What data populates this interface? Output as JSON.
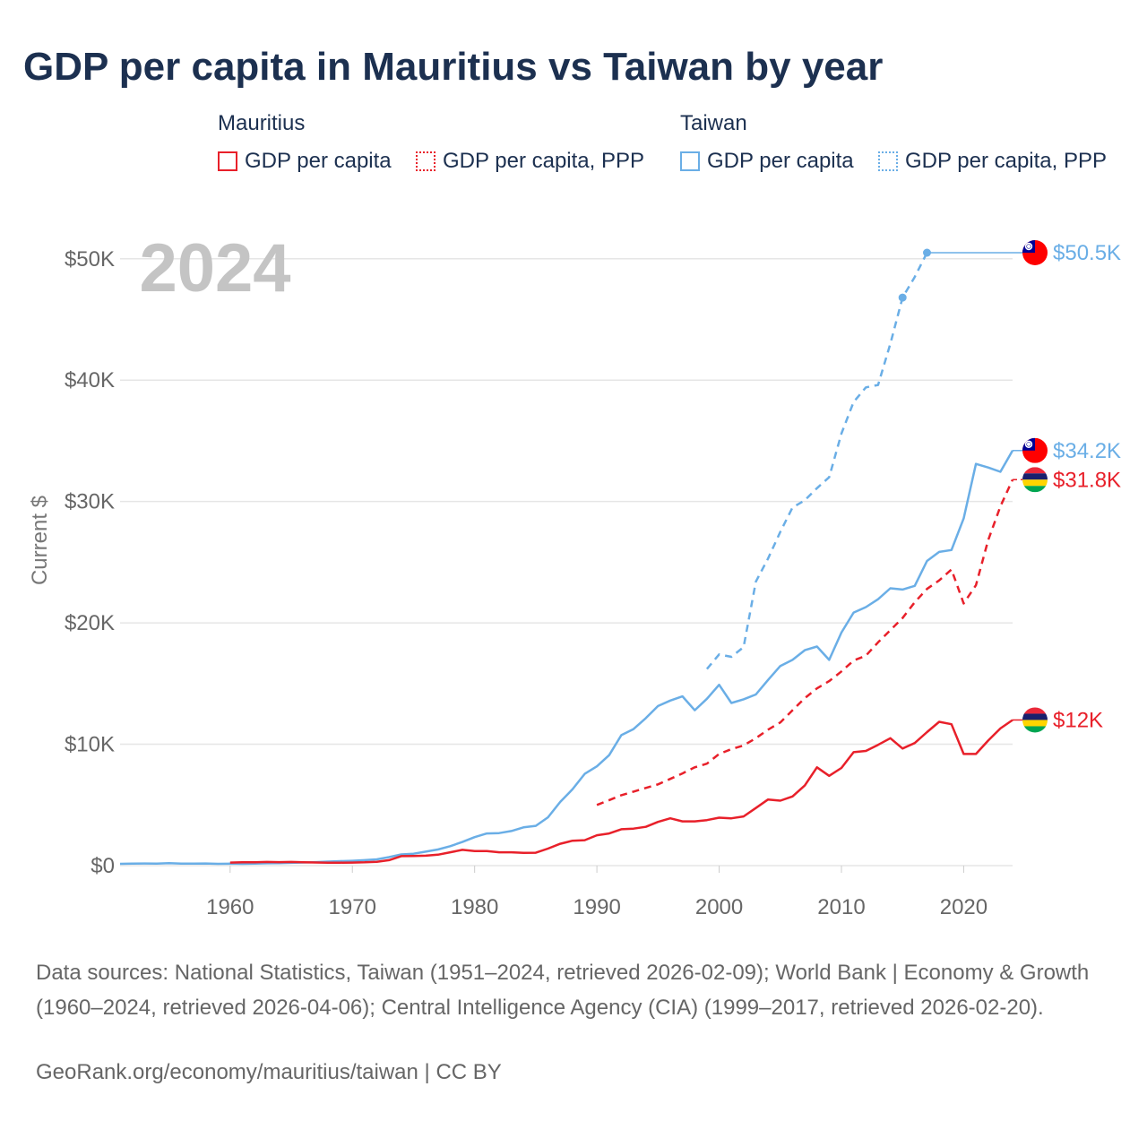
{
  "title": "GDP per capita in Mauritius vs Taiwan by year",
  "legend": {
    "groups": [
      {
        "country": "Mauritius",
        "color": "#e8202a",
        "items": [
          "GDP per capita",
          "GDP per capita, PPP"
        ]
      },
      {
        "country": "Taiwan",
        "color": "#6aaee6",
        "items": [
          "GDP per capita",
          "GDP per capita, PPP"
        ]
      }
    ]
  },
  "year_watermark": "2024",
  "footer": {
    "sources": "Data sources: National Statistics, Taiwan (1951–2024, retrieved 2026-02-09); World Bank | Economy & Growth (1960–2024, retrieved 2026-04-06); Central Intelligence Agency (CIA) (1999–2017, retrieved 2026-02-20).",
    "credit": "GeoRank.org/economy/mauritius/taiwan | CC BY"
  },
  "chart_data": {
    "type": "line",
    "ylabel": "Current $",
    "xlim": [
      1951,
      2024
    ],
    "ylim": [
      0,
      50500
    ],
    "x_ticks": [
      1960,
      1970,
      1980,
      1990,
      2000,
      2010,
      2020
    ],
    "y_ticks": [
      {
        "value": 0,
        "label": "$0"
      },
      {
        "value": 10000,
        "label": "$10K"
      },
      {
        "value": 20000,
        "label": "$20K"
      },
      {
        "value": 30000,
        "label": "$30K"
      },
      {
        "value": 40000,
        "label": "$40K"
      },
      {
        "value": 50000,
        "label": "$50K"
      }
    ],
    "series": [
      {
        "name": "Taiwan GDP per capita",
        "country": "Taiwan",
        "color": "#6aaee6",
        "dashed": false,
        "end_label": "$34.2K",
        "x": [
          1951,
          1952,
          1953,
          1954,
          1955,
          1956,
          1957,
          1958,
          1959,
          1960,
          1961,
          1962,
          1963,
          1964,
          1965,
          1966,
          1967,
          1968,
          1969,
          1970,
          1971,
          1972,
          1973,
          1974,
          1975,
          1976,
          1977,
          1978,
          1979,
          1980,
          1981,
          1982,
          1983,
          1984,
          1985,
          1986,
          1987,
          1988,
          1989,
          1990,
          1991,
          1992,
          1993,
          1994,
          1995,
          1996,
          1997,
          1998,
          1999,
          2000,
          2001,
          2002,
          2003,
          2004,
          2005,
          2006,
          2007,
          2008,
          2009,
          2010,
          2011,
          2012,
          2013,
          2014,
          2015,
          2016,
          2017,
          2018,
          2019,
          2020,
          2021,
          2022,
          2023,
          2024
        ],
        "y": [
          150,
          170,
          180,
          170,
          200,
          160,
          170,
          180,
          150,
          160,
          150,
          170,
          190,
          210,
          230,
          260,
          290,
          330,
          370,
          400,
          450,
          520,
          700,
          920,
          980,
          1150,
          1330,
          1600,
          1950,
          2350,
          2650,
          2680,
          2850,
          3150,
          3280,
          3980,
          5250,
          6280,
          7560,
          8180,
          9100,
          10750,
          11250,
          12150,
          13150,
          13600,
          13950,
          12800,
          13750,
          14900,
          13400,
          13700,
          14100,
          15300,
          16450,
          16950,
          17750,
          18050,
          16950,
          19200,
          20850,
          21300,
          21950,
          22850,
          22750,
          23050,
          25100,
          25850,
          26000,
          28600,
          33100,
          32800,
          32450,
          34200
        ]
      },
      {
        "name": "Taiwan GDP per capita, PPP",
        "country": "Taiwan",
        "color": "#6aaee6",
        "dashed": true,
        "end_label": "$50.5K",
        "x": [
          1999,
          2000,
          2001,
          2002,
          2003,
          2004,
          2005,
          2006,
          2007,
          2008,
          2009,
          2010,
          2011,
          2012,
          2013,
          2014,
          2015,
          2016,
          2017
        ],
        "y": [
          16200,
          17400,
          17200,
          18000,
          23400,
          25300,
          27500,
          29500,
          30100,
          31100,
          32000,
          35600,
          38200,
          39400,
          39600,
          43000,
          46800,
          48500,
          50500
        ],
        "markers": [
          2015,
          2017
        ],
        "extend_to": 2024
      },
      {
        "name": "Mauritius GDP per capita",
        "country": "Mauritius",
        "color": "#e8202a",
        "dashed": false,
        "end_label": "$12K",
        "x": [
          1960,
          1961,
          1962,
          1963,
          1964,
          1965,
          1966,
          1967,
          1968,
          1969,
          1970,
          1971,
          1972,
          1973,
          1974,
          1975,
          1976,
          1977,
          1978,
          1979,
          1980,
          1981,
          1982,
          1983,
          1984,
          1985,
          1986,
          1987,
          1988,
          1989,
          1990,
          1991,
          1992,
          1993,
          1994,
          1995,
          1996,
          1997,
          1998,
          1999,
          2000,
          2001,
          2002,
          2003,
          2004,
          2005,
          2006,
          2007,
          2008,
          2009,
          2010,
          2011,
          2012,
          2013,
          2014,
          2015,
          2016,
          2017,
          2018,
          2019,
          2020,
          2021,
          2022,
          2023,
          2024
        ],
        "y": [
          250,
          270,
          280,
          300,
          290,
          300,
          280,
          260,
          240,
          240,
          250,
          270,
          320,
          450,
          780,
          800,
          820,
          900,
          1100,
          1300,
          1200,
          1200,
          1100,
          1100,
          1050,
          1060,
          1400,
          1800,
          2050,
          2100,
          2500,
          2650,
          3000,
          3050,
          3200,
          3600,
          3900,
          3650,
          3650,
          3750,
          3950,
          3900,
          4050,
          4750,
          5450,
          5350,
          5700,
          6600,
          8100,
          7400,
          8050,
          9350,
          9450,
          9950,
          10500,
          9650,
          10100,
          11000,
          11850,
          11650,
          9200,
          9200,
          10300,
          11300,
          12000
        ]
      },
      {
        "name": "Mauritius GDP per capita, PPP",
        "country": "Mauritius",
        "color": "#e8202a",
        "dashed": true,
        "end_label": "$31.8K",
        "x": [
          1990,
          1991,
          1992,
          1993,
          1994,
          1995,
          1996,
          1997,
          1998,
          1999,
          2000,
          2001,
          2002,
          2003,
          2004,
          2005,
          2006,
          2007,
          2008,
          2009,
          2010,
          2011,
          2012,
          2013,
          2014,
          2015,
          2016,
          2017,
          2018,
          2019,
          2020,
          2021,
          2022,
          2023,
          2024
        ],
        "y": [
          5000,
          5400,
          5800,
          6100,
          6400,
          6700,
          7150,
          7600,
          8100,
          8400,
          9200,
          9600,
          9900,
          10500,
          11200,
          11800,
          12800,
          13800,
          14600,
          15200,
          16000,
          16900,
          17300,
          18400,
          19400,
          20400,
          21700,
          22800,
          23500,
          24400,
          21600,
          23100,
          26800,
          29600,
          31800
        ]
      }
    ]
  }
}
